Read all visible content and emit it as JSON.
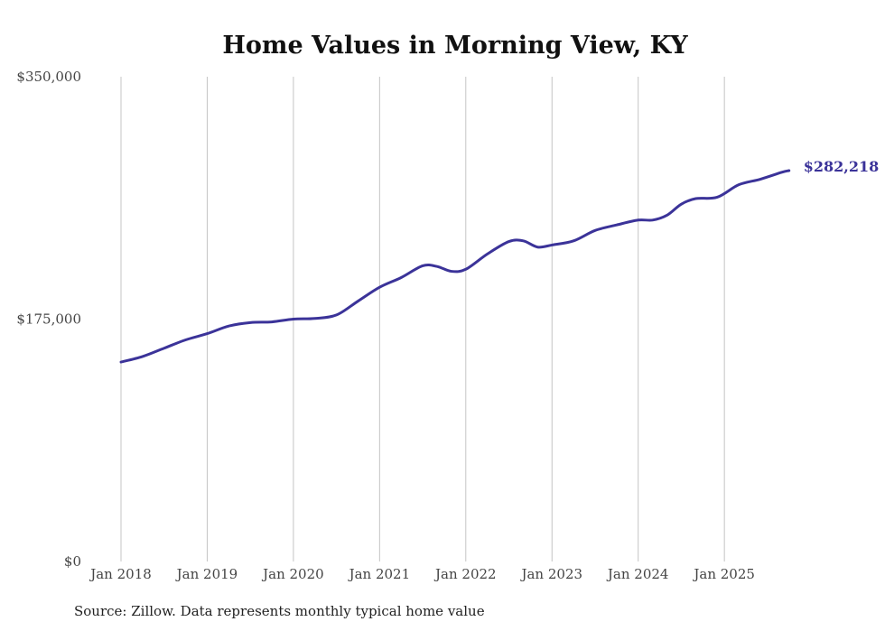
{
  "chart_data": {
    "type": "line",
    "title": "Home Values in Morning View, KY",
    "xlabel": "",
    "ylabel": "",
    "ylim": [
      0,
      350000
    ],
    "y_ticks": [
      0,
      175000,
      350000
    ],
    "y_tick_labels": [
      "$0",
      "$175,000",
      "$350,000"
    ],
    "x_tick_labels": [
      "Jan 2018",
      "Jan 2019",
      "Jan 2020",
      "Jan 2021",
      "Jan 2022",
      "Jan 2023",
      "Jan 2024",
      "Jan 2025"
    ],
    "x_unit": "months since Jan 2018",
    "grid": "vertical",
    "series": [
      {
        "name": "Typical home value",
        "color": "#3b3399",
        "x": [
          0,
          3,
          6,
          9,
          12,
          15,
          18,
          21,
          24,
          27,
          30,
          33,
          36,
          39,
          42,
          44,
          46,
          48,
          51,
          54,
          56,
          58,
          60,
          63,
          66,
          69,
          72,
          74,
          76,
          78,
          80,
          83,
          86,
          89,
          92,
          93
        ],
        "values": [
          144000,
          148000,
          154000,
          160000,
          164500,
          170000,
          172500,
          173000,
          175000,
          175500,
          178000,
          188000,
          198000,
          205000,
          213500,
          213000,
          209500,
          211000,
          222000,
          231000,
          231500,
          227000,
          228500,
          231500,
          239000,
          243000,
          246500,
          246500,
          250000,
          258000,
          262000,
          263000,
          272000,
          276000,
          281000,
          282218
        ]
      }
    ],
    "end_label": "$282,218",
    "source": "Source: Zillow. Data represents monthly typical home value"
  }
}
